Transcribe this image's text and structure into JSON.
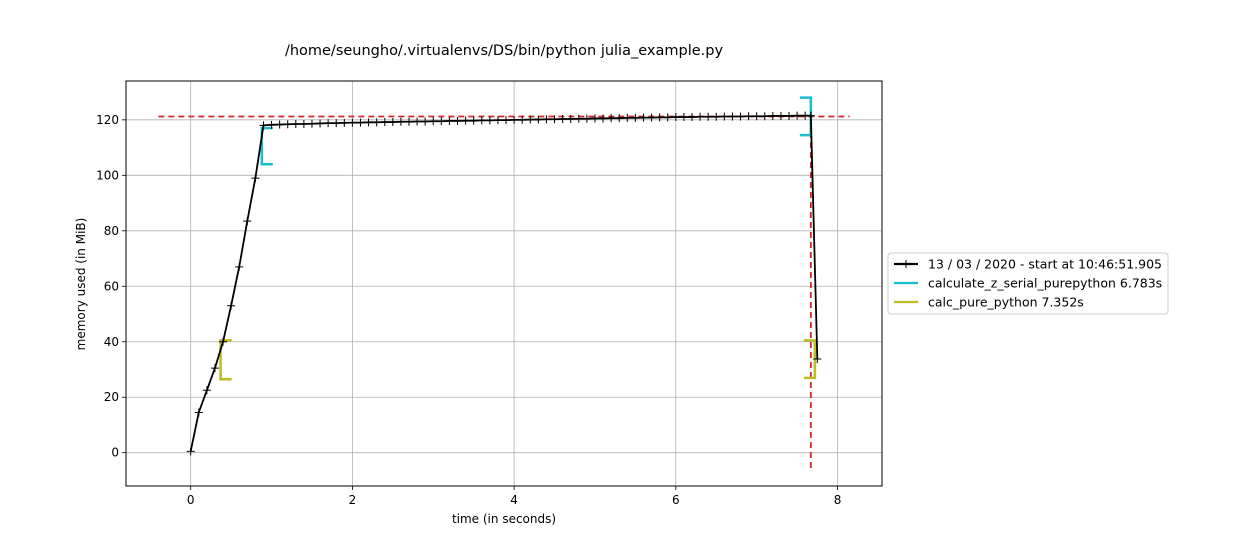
{
  "chart_data": {
    "type": "line",
    "title": "/home/seungho/.virtualenvs/DS/bin/python julia_example.py",
    "xlabel": "time (in seconds)",
    "ylabel": "memory used (in MiB)",
    "xlim": [
      -0.8,
      8.55
    ],
    "ylim": [
      -12,
      134
    ],
    "xticks": [
      0,
      2,
      4,
      6,
      8
    ],
    "yticks": [
      0,
      20,
      40,
      60,
      80,
      100,
      120
    ],
    "grid": true,
    "legend_position": "center-right, outside plot",
    "series": [
      {
        "name": "13 / 03 / 2020 - start at 10:46:51.905",
        "color": "#000000",
        "marker": "+",
        "x": [
          0.0,
          0.1,
          0.2,
          0.3,
          0.4,
          0.5,
          0.6,
          0.7,
          0.8,
          0.9,
          1.0,
          1.1,
          1.2,
          1.3,
          1.4,
          1.5,
          1.6,
          1.7,
          1.8,
          1.9,
          2.0,
          2.1,
          2.2,
          2.3,
          2.4,
          2.5,
          2.6,
          2.7,
          2.8,
          2.9,
          3.0,
          3.1,
          3.2,
          3.3,
          3.4,
          3.5,
          3.6,
          3.7,
          3.8,
          3.9,
          4.0,
          4.1,
          4.2,
          4.3,
          4.4,
          4.5,
          4.6,
          4.7,
          4.8,
          4.9,
          5.0,
          5.1,
          5.2,
          5.3,
          5.4,
          5.5,
          5.6,
          5.7,
          5.8,
          5.9,
          6.0,
          6.1,
          6.2,
          6.3,
          6.4,
          6.5,
          6.6,
          6.7,
          6.8,
          6.9,
          7.0,
          7.1,
          7.2,
          7.3,
          7.4,
          7.5,
          7.6,
          7.67,
          7.75
        ],
        "y": [
          0.5,
          14.5,
          22.5,
          30.5,
          40.0,
          53.0,
          67.0,
          83.5,
          99.0,
          118.0,
          118.2,
          118.3,
          118.4,
          118.5,
          118.5,
          118.6,
          118.7,
          118.8,
          118.8,
          118.9,
          119.0,
          119.0,
          119.1,
          119.1,
          119.2,
          119.2,
          119.3,
          119.3,
          119.4,
          119.4,
          119.5,
          119.5,
          119.6,
          119.6,
          119.7,
          119.7,
          119.8,
          119.8,
          119.9,
          119.9,
          120.0,
          120.0,
          120.1,
          120.1,
          120.2,
          120.2,
          120.3,
          120.3,
          120.4,
          120.4,
          120.5,
          120.5,
          120.6,
          120.6,
          120.7,
          120.7,
          120.8,
          120.8,
          120.9,
          120.9,
          121.0,
          121.0,
          121.0,
          121.1,
          121.1,
          121.1,
          121.2,
          121.2,
          121.2,
          121.3,
          121.3,
          121.3,
          121.4,
          121.4,
          121.4,
          121.5,
          121.5,
          121.5,
          33.8
        ]
      },
      {
        "name": "calculate_z_serial_purepython 6.783s",
        "color": "#17becf",
        "type": "function-bracket",
        "start": {
          "x": 0.88,
          "y_low": 104.0,
          "y_high": 117.0
        },
        "end": {
          "x": 7.67,
          "y_low": 114.5,
          "y_high": 128.0
        }
      },
      {
        "name": "calc_pure_python 7.352s",
        "color": "#bcbd22",
        "type": "function-bracket",
        "start": {
          "x": 0.37,
          "y_low": 26.5,
          "y_high": 40.5
        },
        "end": {
          "x": 7.72,
          "y_low": 27.0,
          "y_high": 40.5
        }
      }
    ],
    "reference_lines": [
      {
        "orientation": "horizontal",
        "y": 121.2,
        "x_from": -0.4,
        "x_to": 8.15,
        "color": "#d62728",
        "style": "dashed"
      },
      {
        "orientation": "vertical",
        "x": 7.67,
        "y_from": -5.5,
        "y_to": 121.2,
        "color": "#d62728",
        "style": "dashed"
      }
    ]
  }
}
